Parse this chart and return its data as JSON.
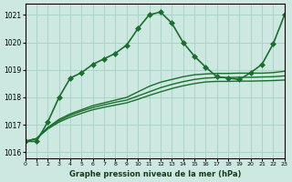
{
  "title": "Graphe pression niveau de la mer (hPa)",
  "bg_color": "#cce8e0",
  "grid_color": "#aad4c8",
  "line_color": "#1a6e2e",
  "xlim": [
    0,
    23
  ],
  "ylim": [
    1015.8,
    1021.4
  ],
  "yticks": [
    1016,
    1017,
    1018,
    1019,
    1020,
    1021
  ],
  "xticks": [
    0,
    1,
    2,
    3,
    4,
    5,
    6,
    7,
    8,
    9,
    10,
    11,
    12,
    13,
    14,
    15,
    16,
    17,
    18,
    19,
    20,
    21,
    22,
    23
  ],
  "series": [
    {
      "x": [
        0,
        1,
        2,
        3,
        4,
        5,
        6,
        7,
        8,
        9,
        10,
        11,
        12,
        13,
        14,
        15,
        16,
        17,
        18,
        19,
        20,
        21,
        22,
        23
      ],
      "y": [
        1016.4,
        1016.4,
        1017.1,
        1018.0,
        1018.7,
        1018.9,
        1019.2,
        1019.4,
        1019.6,
        1019.9,
        1020.5,
        1021.0,
        1021.1,
        1020.7,
        1020.0,
        1019.5,
        1019.1,
        1018.75,
        1018.7,
        1018.65,
        1018.9,
        1019.2,
        1019.95,
        1021.0
      ],
      "marker": "D",
      "markersize": 3,
      "linewidth": 1.2
    },
    {
      "x": [
        0,
        1,
        2,
        3,
        4,
        5,
        6,
        7,
        8,
        9,
        10,
        11,
        12,
        13,
        14,
        15,
        16,
        17,
        18,
        19,
        20,
        21,
        22,
        23
      ],
      "y": [
        1016.4,
        1016.5,
        1016.9,
        1017.2,
        1017.4,
        1017.55,
        1017.7,
        1017.8,
        1017.9,
        1018.0,
        1018.2,
        1018.4,
        1018.55,
        1018.65,
        1018.75,
        1018.82,
        1018.85,
        1018.87,
        1018.87,
        1018.88,
        1018.88,
        1018.88,
        1018.9,
        1018.95
      ],
      "marker": null,
      "markersize": 0,
      "linewidth": 1.0
    },
    {
      "x": [
        0,
        1,
        2,
        3,
        4,
        5,
        6,
        7,
        8,
        9,
        10,
        11,
        12,
        13,
        14,
        15,
        16,
        17,
        18,
        19,
        20,
        21,
        22,
        23
      ],
      "y": [
        1016.4,
        1016.5,
        1016.9,
        1017.15,
        1017.35,
        1017.5,
        1017.63,
        1017.73,
        1017.82,
        1017.9,
        1018.05,
        1018.2,
        1018.35,
        1018.47,
        1018.57,
        1018.65,
        1018.7,
        1018.72,
        1018.72,
        1018.73,
        1018.73,
        1018.74,
        1018.75,
        1018.78
      ],
      "marker": null,
      "markersize": 0,
      "linewidth": 1.0
    },
    {
      "x": [
        0,
        1,
        2,
        3,
        4,
        5,
        6,
        7,
        8,
        9,
        10,
        11,
        12,
        13,
        14,
        15,
        16,
        17,
        18,
        19,
        20,
        21,
        22,
        23
      ],
      "y": [
        1016.4,
        1016.5,
        1016.85,
        1017.1,
        1017.28,
        1017.42,
        1017.55,
        1017.64,
        1017.72,
        1017.8,
        1017.93,
        1018.07,
        1018.2,
        1018.32,
        1018.42,
        1018.5,
        1018.56,
        1018.58,
        1018.58,
        1018.59,
        1018.59,
        1018.6,
        1018.61,
        1018.63
      ],
      "marker": null,
      "markersize": 0,
      "linewidth": 1.0
    }
  ]
}
